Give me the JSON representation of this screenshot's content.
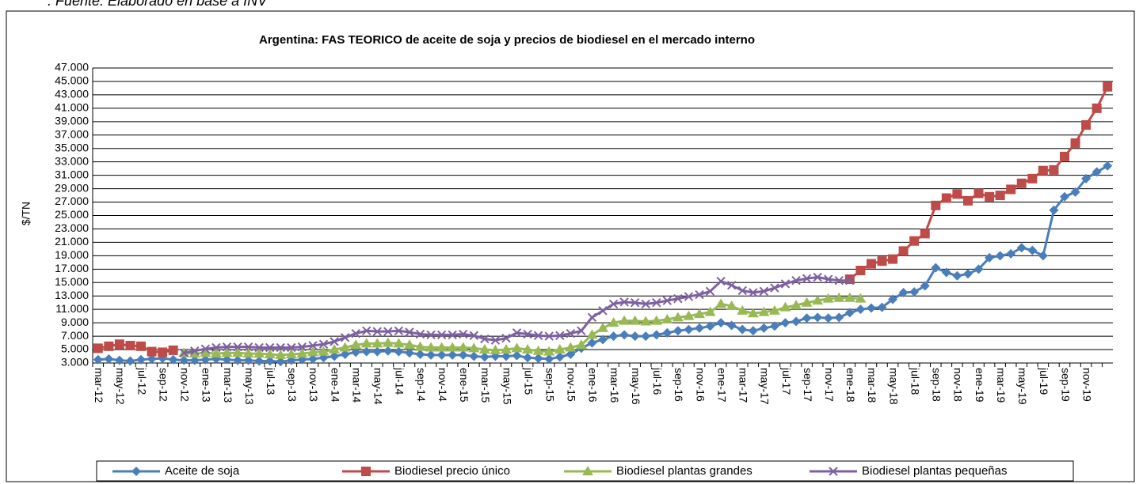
{
  "source": ". Fuente: Elaborado en base a INV",
  "chart_data": {
    "type": "line",
    "title": "Argentina: FAS  TEORICO  de aceite de soja y precios de biodiesel  en el mercado interno",
    "ylabel": "$/TN",
    "grid": true,
    "legend": "bottom",
    "ylim": [
      3000,
      47000
    ],
    "yticks": [
      {
        "value": 3000,
        "label": "3.000"
      },
      {
        "value": 5000,
        "label": "5.000"
      },
      {
        "value": 7000,
        "label": "7.000"
      },
      {
        "value": 9000,
        "label": "9.000"
      },
      {
        "value": 11000,
        "label": "11.000"
      },
      {
        "value": 13000,
        "label": "13.000"
      },
      {
        "value": 15000,
        "label": "15.000"
      },
      {
        "value": 17000,
        "label": "17.000"
      },
      {
        "value": 19000,
        "label": "19.000"
      },
      {
        "value": 21000,
        "label": "21.000"
      },
      {
        "value": 23000,
        "label": "23.000"
      },
      {
        "value": 25000,
        "label": "25.000"
      },
      {
        "value": 27000,
        "label": "27.000"
      },
      {
        "value": 29000,
        "label": "29.000"
      },
      {
        "value": 31000,
        "label": "31.000"
      },
      {
        "value": 33000,
        "label": "33.000"
      },
      {
        "value": 35000,
        "label": "35.000"
      },
      {
        "value": 37000,
        "label": "37.000"
      },
      {
        "value": 39000,
        "label": "39.000"
      },
      {
        "value": 41000,
        "label": "41.000"
      },
      {
        "value": 43000,
        "label": "43.000"
      },
      {
        "value": 45000,
        "label": "45.000"
      },
      {
        "value": 47000,
        "label": "47.000"
      }
    ],
    "categories": [
      "mar-12",
      null,
      "may-12",
      null,
      "jul-12",
      null,
      "sep-12",
      null,
      "nov-12",
      null,
      "ene-13",
      null,
      "mar-13",
      null,
      "may-13",
      null,
      "jul-13",
      null,
      "sep-13",
      null,
      "nov-13",
      null,
      "ene-14",
      null,
      "mar-14",
      null,
      "may-14",
      null,
      "jul-14",
      null,
      "sep-14",
      null,
      "nov-14",
      null,
      "ene-15",
      null,
      "mar-15",
      null,
      "may-15",
      null,
      "jul-15",
      null,
      "sep-15",
      null,
      "nov-15",
      null,
      "ene-16",
      null,
      "mar-16",
      null,
      "may-16",
      null,
      "jul-16",
      null,
      "sep-16",
      null,
      "nov-16",
      null,
      "ene-17",
      null,
      "mar-17",
      null,
      "may-17",
      null,
      "jul-17",
      null,
      "sep-17",
      null,
      "nov-17",
      null,
      "ene-18",
      null,
      "mar-18",
      null,
      "may-18",
      null,
      "jul-18",
      null,
      "sep-18",
      null,
      "nov-18",
      null,
      "ene-19",
      null,
      "mar-19",
      null,
      "may-19",
      null,
      "jul-19",
      null,
      "sep-19",
      null,
      "nov-19",
      null,
      null
    ],
    "series": [
      {
        "name": "Aceite de soja",
        "color": "#4a7ebb",
        "marker": "diamond",
        "values": [
          3500,
          3600,
          3400,
          3300,
          3500,
          3600,
          3700,
          3500,
          3400,
          3400,
          3500,
          3600,
          3500,
          3400,
          3400,
          3300,
          3300,
          3200,
          3400,
          3500,
          3600,
          3800,
          4000,
          4300,
          4600,
          4700,
          4700,
          4800,
          4700,
          4500,
          4300,
          4200,
          4200,
          4200,
          4200,
          4000,
          3900,
          4000,
          4000,
          4100,
          3800,
          3700,
          3600,
          3900,
          4300,
          5200,
          6000,
          6500,
          7000,
          7200,
          7000,
          7000,
          7200,
          7500,
          7800,
          8000,
          8200,
          8500,
          9000,
          8600,
          8000,
          7800,
          8200,
          8500,
          9000,
          9200,
          9700,
          9800,
          9700,
          9800,
          10500,
          11000,
          11200,
          11300,
          12500,
          13500,
          13600,
          14500,
          17200,
          16500,
          16000,
          16300,
          17000,
          18700,
          19000,
          19300,
          20200,
          19800,
          19000,
          25800,
          27800,
          28500,
          30500,
          31500,
          32400
        ]
      },
      {
        "name": "Biodiesel precio único",
        "color": "#be4b48",
        "marker": "square",
        "values": [
          5200,
          5500,
          5800,
          5600,
          5500,
          4700,
          4600,
          4900,
          null,
          null,
          null,
          null,
          null,
          null,
          null,
          null,
          null,
          null,
          null,
          null,
          null,
          null,
          null,
          null,
          null,
          null,
          null,
          null,
          null,
          null,
          null,
          null,
          null,
          null,
          null,
          null,
          null,
          null,
          null,
          null,
          null,
          null,
          null,
          null,
          null,
          null,
          null,
          null,
          null,
          null,
          null,
          null,
          null,
          null,
          null,
          null,
          null,
          null,
          null,
          null,
          null,
          null,
          null,
          null,
          null,
          null,
          null,
          null,
          null,
          null,
          15500,
          16800,
          17800,
          18200,
          18500,
          19700,
          21200,
          22300,
          26500,
          27600,
          28200,
          27200,
          28300,
          27800,
          28000,
          28900,
          29800,
          30500,
          31700,
          31800,
          33800,
          35800,
          38500,
          41000,
          44200
        ]
      },
      {
        "name": "Biodiesel plantas grandes",
        "color": "#98b954",
        "marker": "triangle",
        "values": [
          null,
          null,
          null,
          null,
          null,
          null,
          null,
          null,
          4500,
          4400,
          4500,
          4400,
          4500,
          4500,
          4400,
          4400,
          4300,
          4200,
          4300,
          4400,
          4600,
          4700,
          5000,
          5300,
          5700,
          5900,
          5900,
          6000,
          5900,
          5700,
          5400,
          5300,
          5300,
          5300,
          5300,
          5200,
          5000,
          4900,
          5000,
          5200,
          5000,
          4800,
          4700,
          5000,
          5300,
          5700,
          7200,
          8200,
          9000,
          9300,
          9300,
          9200,
          9300,
          9500,
          9800,
          10000,
          10300,
          10600,
          11800,
          11500,
          10800,
          10400,
          10600,
          10800,
          11300,
          11600,
          12000,
          12300,
          12600,
          12700,
          12700,
          12600,
          null,
          null,
          null,
          null,
          null,
          null,
          null,
          null,
          null,
          null,
          null,
          null,
          null,
          null,
          null,
          null,
          null,
          null,
          null,
          null,
          null,
          null,
          null
        ]
      },
      {
        "name": "Biodiesel plantas pequeñas",
        "color": "#7d60a0",
        "marker": "x",
        "values": [
          null,
          null,
          null,
          null,
          null,
          null,
          null,
          null,
          4500,
          4800,
          5100,
          5300,
          5400,
          5400,
          5400,
          5300,
          5300,
          5300,
          5300,
          5400,
          5600,
          5800,
          6200,
          6800,
          7400,
          7800,
          7700,
          7700,
          7800,
          7600,
          7300,
          7200,
          7200,
          7200,
          7300,
          7100,
          6600,
          6400,
          6700,
          7500,
          7300,
          7100,
          7000,
          7100,
          7400,
          7800,
          9800,
          10800,
          11800,
          12100,
          12000,
          11800,
          12000,
          12300,
          12600,
          12900,
          13200,
          13700,
          15200,
          14600,
          13800,
          13500,
          13700,
          14200,
          14800,
          15300,
          15600,
          15800,
          15500,
          15300,
          15300,
          null,
          null,
          null,
          null,
          null,
          null,
          null,
          null,
          null,
          null,
          null,
          null,
          null,
          null,
          null,
          null,
          null,
          null,
          null,
          null,
          null,
          null,
          null,
          null
        ]
      }
    ]
  }
}
